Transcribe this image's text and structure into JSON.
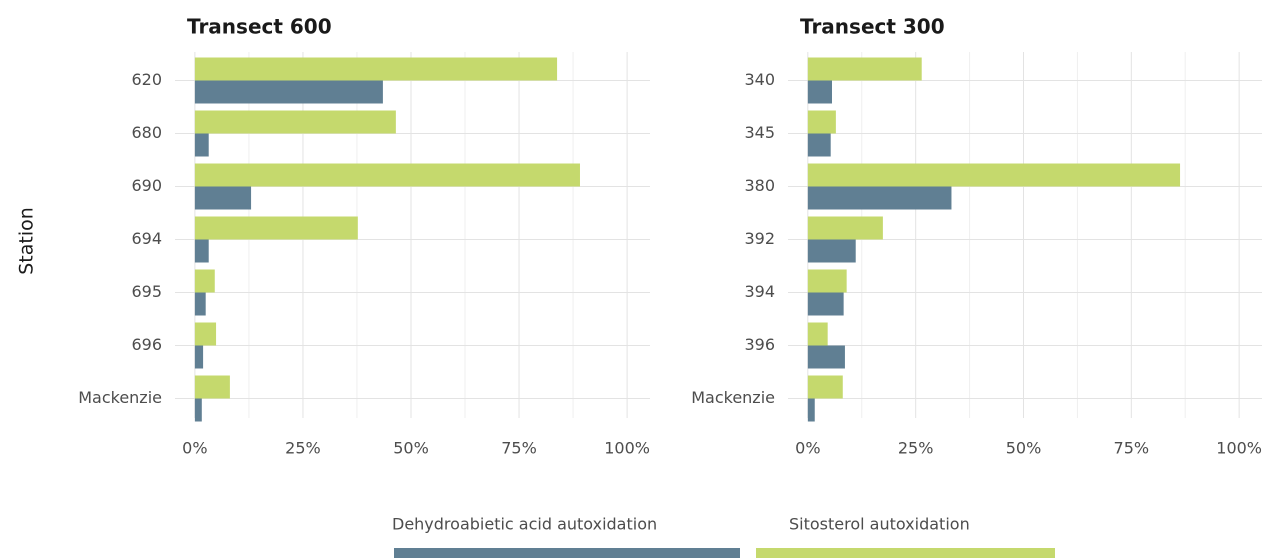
{
  "chart_data": [
    {
      "type": "bar",
      "horizontal": true,
      "title": "Transect 600",
      "categories": [
        "620",
        "680",
        "690",
        "694",
        "695",
        "696",
        "Mackenzie"
      ],
      "series": [
        {
          "values": [
            43.5,
            3.2,
            13.0,
            3.2,
            2.5,
            1.9,
            1.6
          ]
        },
        {
          "values": [
            83.8,
            46.5,
            89.1,
            37.7,
            4.6,
            4.9,
            8.1
          ]
        }
      ],
      "xlim": [
        -4.6,
        105.3
      ],
      "xticks": [
        {
          "value": 0,
          "label": "0%"
        },
        {
          "value": 25,
          "label": "25%"
        },
        {
          "value": 50,
          "label": "50%"
        },
        {
          "value": 75,
          "label": "75%"
        },
        {
          "value": 100,
          "label": "100%"
        }
      ],
      "grid": true
    },
    {
      "type": "bar",
      "horizontal": true,
      "title": "Transect 300",
      "categories": [
        "340",
        "345",
        "380",
        "392",
        "394",
        "396",
        "Mackenzie"
      ],
      "series": [
        {
          "values": [
            5.6,
            5.3,
            33.3,
            11.1,
            8.3,
            8.6,
            1.6
          ]
        },
        {
          "values": [
            26.4,
            6.5,
            86.3,
            17.4,
            9.0,
            4.6,
            8.1
          ]
        }
      ],
      "xlim": [
        -4.6,
        105.3
      ],
      "xticks": [
        {
          "value": 0,
          "label": "0%"
        },
        {
          "value": 25,
          "label": "25%"
        },
        {
          "value": 50,
          "label": "50%"
        },
        {
          "value": 75,
          "label": "75%"
        },
        {
          "value": 100,
          "label": "100%"
        }
      ],
      "grid": true
    }
  ],
  "y_label": "Station",
  "legend": [
    {
      "name": "Dehydroabietic acid autoxidation",
      "color": "#607f93"
    },
    {
      "name": "Sitosterol autoxidation",
      "color": "#c5d96d"
    }
  ]
}
